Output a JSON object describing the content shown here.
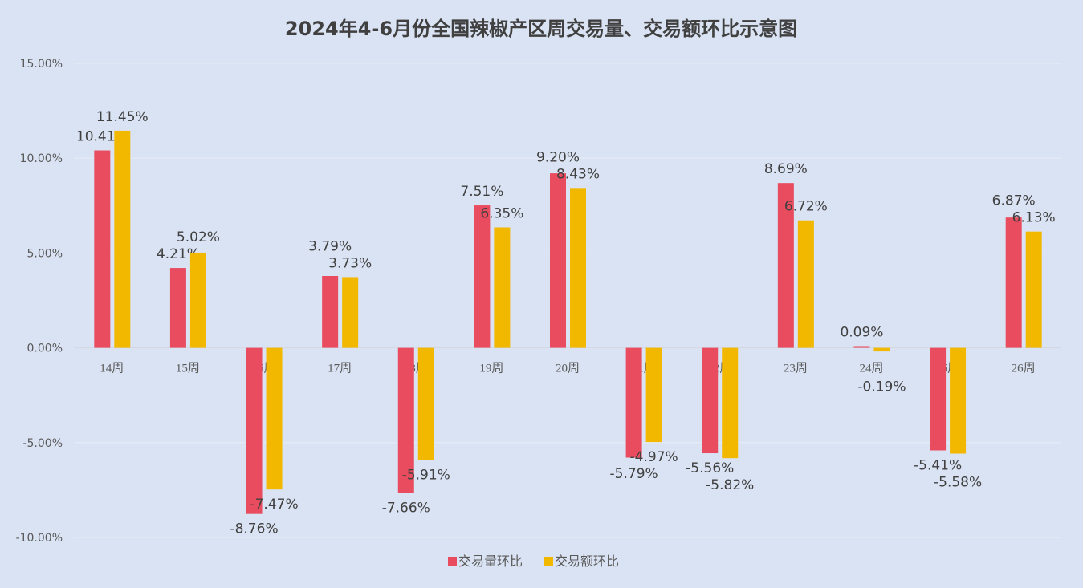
{
  "chart_data": {
    "type": "bar",
    "title": "2024年4-6月份全国辣椒产区周交易量、交易额环比示意图",
    "categories": [
      "14周",
      "15周",
      "16周",
      "17周",
      "18周",
      "19周",
      "20周",
      "21周",
      "22周",
      "23周",
      "24周",
      "25周",
      "26周"
    ],
    "series": [
      {
        "name": "交易量环比",
        "color": "#e84c5e",
        "values": [
          10.41,
          4.21,
          -8.76,
          3.79,
          -7.66,
          7.51,
          9.2,
          -5.79,
          -5.56,
          8.69,
          0.09,
          -5.41,
          6.87
        ]
      },
      {
        "name": "交易额环比",
        "color": "#f2b800",
        "values": [
          11.45,
          5.02,
          -7.47,
          3.73,
          -5.91,
          6.35,
          8.43,
          -4.97,
          -5.82,
          6.72,
          -0.19,
          -5.58,
          6.13
        ]
      }
    ],
    "yticks": [
      "15.00%",
      "10.00%",
      "5.00%",
      "0.00%",
      "-5.00%",
      "-10.00%"
    ],
    "ylim": [
      -10,
      15
    ],
    "unit": "%",
    "grid": true,
    "legend": "bottom"
  }
}
